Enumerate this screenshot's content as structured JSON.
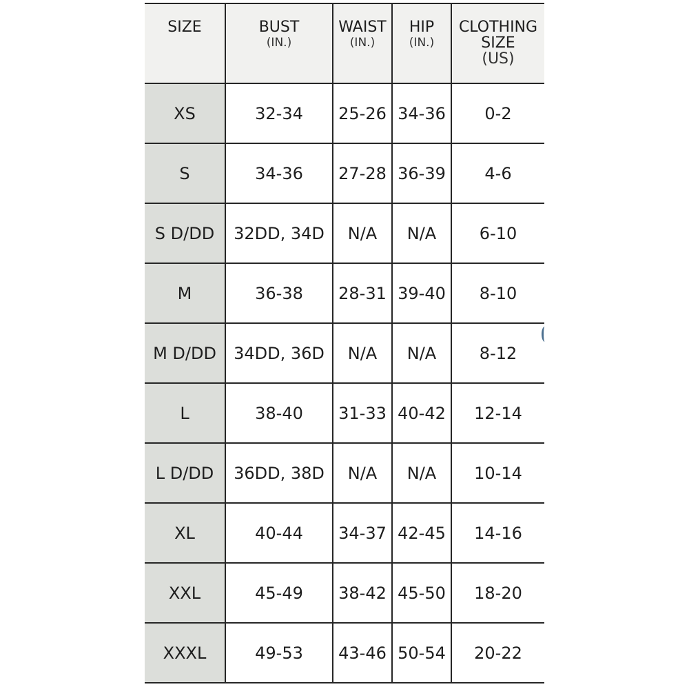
{
  "headers": [
    {
      "label": "SIZE",
      "unit": ""
    },
    {
      "label": "BUST",
      "unit": "(IN.)"
    },
    {
      "label": "WAIST",
      "unit": "(IN.)"
    },
    {
      "label": "HIP",
      "unit": "(IN.)"
    },
    {
      "label": "CLOTHING SIZE",
      "unit": "(US)"
    }
  ],
  "rows": [
    [
      "XS",
      "32-34",
      "25-26",
      "34-36",
      "0-2"
    ],
    [
      "S",
      "34-36",
      "27-28",
      "36-39",
      "4-6"
    ],
    [
      "S D/DD",
      "32DD, 34D",
      "N/A",
      "N/A",
      "6-10"
    ],
    [
      "M",
      "36-38",
      "28-31",
      "39-40",
      "8-10"
    ],
    [
      "M D/DD",
      "34DD, 36D",
      "N/A",
      "N/A",
      "8-12"
    ],
    [
      "L",
      "38-40",
      "31-33",
      "40-42",
      "12-14"
    ],
    [
      "L D/DD",
      "36DD, 38D",
      "N/A",
      "N/A",
      "10-14"
    ],
    [
      "XL",
      "40-44",
      "34-37",
      "42-45",
      "14-16"
    ],
    [
      "XXL",
      "45-49",
      "38-42",
      "45-50",
      "18-20"
    ],
    [
      "XXXL",
      "49-53",
      "43-46",
      "50-54",
      "20-22"
    ]
  ],
  "colors": {
    "header_bg": "#f1f1ef",
    "size_col_bg": "#dcdeda",
    "border": "#262626"
  }
}
